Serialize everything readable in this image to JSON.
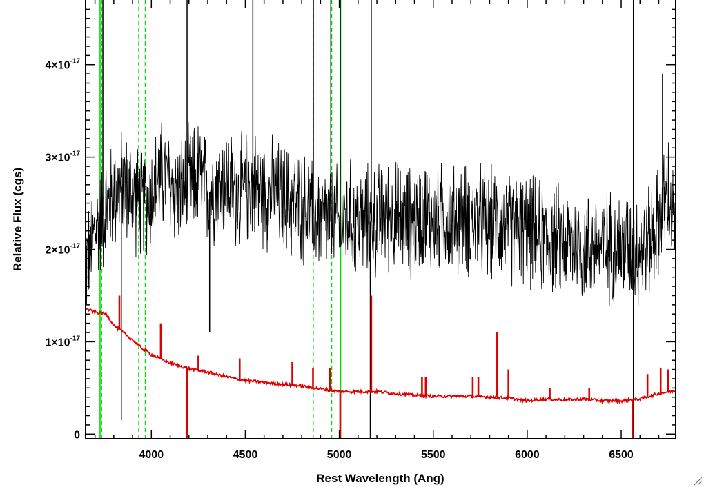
{
  "chart_data": {
    "type": "line",
    "xlabel": "Rest Wavelength (Ang)",
    "ylabel": "Relative Flux (cgs)",
    "xlim": [
      3650,
      6790
    ],
    "ylim": [
      -5e-19,
      4.7e-17
    ],
    "x_ticks": [
      4000,
      4500,
      5000,
      5500,
      6000,
      6500
    ],
    "y_ticks": [
      {
        "value": 0,
        "mantissa": "0",
        "power": ""
      },
      {
        "value": 1e-17,
        "mantissa": "1×10",
        "power": "-17"
      },
      {
        "value": 2e-17,
        "mantissa": "2×10",
        "power": "-17"
      },
      {
        "value": 3e-17,
        "mantissa": "3×10",
        "power": "-17"
      },
      {
        "value": 4e-17,
        "mantissa": "4×10",
        "power": "-17"
      }
    ],
    "grid": false,
    "series": [
      {
        "role": "observed_spectrum",
        "color": "#000000",
        "x": [
          3650,
          3700,
          3750,
          3800,
          3850,
          3900,
          3950,
          4000,
          4050,
          4100,
          4150,
          4200,
          4250,
          4300,
          4350,
          4400,
          4450,
          4500,
          4550,
          4600,
          4650,
          4700,
          4750,
          4800,
          4850,
          4900,
          4950,
          5000,
          5050,
          5100,
          5150,
          5200,
          5250,
          5300,
          5350,
          5400,
          5450,
          5500,
          5550,
          5600,
          5650,
          5700,
          5750,
          5800,
          5850,
          5900,
          5950,
          6000,
          6050,
          6100,
          6150,
          6200,
          6250,
          6300,
          6350,
          6400,
          6450,
          6500,
          6550,
          6600,
          6650,
          6700,
          6750,
          6790
        ],
        "y": [
          1.8e-17,
          2.2e-17,
          2.4e-17,
          2.6e-17,
          2.7e-17,
          2.6e-17,
          2.5e-17,
          2.6e-17,
          2.8e-17,
          2.7e-17,
          2.6e-17,
          2.7e-17,
          2.8e-17,
          2.6e-17,
          2.7e-17,
          2.75e-17,
          2.6e-17,
          2.65e-17,
          2.7e-17,
          2.6e-17,
          2.6e-17,
          2.55e-17,
          2.5e-17,
          2.45e-17,
          2.4e-17,
          2.35e-17,
          2.3e-17,
          2.3e-17,
          2.35e-17,
          2.3e-17,
          2.3e-17,
          2.3e-17,
          2.4e-17,
          2.35e-17,
          2.3e-17,
          2.3e-17,
          2.4e-17,
          2.3e-17,
          2.35e-17,
          2.3e-17,
          2.35e-17,
          2.3e-17,
          2.3e-17,
          2.25e-17,
          2.3e-17,
          2.2e-17,
          2.25e-17,
          2.2e-17,
          2.15e-17,
          2.1e-17,
          2.1e-17,
          2.05e-17,
          2.1e-17,
          2e-17,
          2.05e-17,
          2e-17,
          2.05e-17,
          2e-17,
          2.05e-17,
          2e-17,
          2.1e-17,
          2.3e-17,
          2.6e-17,
          2.2e-17
        ],
        "noise_amplitude": 5.5e-18,
        "spikes": [
          {
            "x": 3742,
            "y": 4.7e-17
          },
          {
            "x": 3840,
            "y": 1.5e-18
          },
          {
            "x": 4190,
            "y": 4.7e-17
          },
          {
            "x": 4310,
            "y": 1.1e-17
          },
          {
            "x": 4540,
            "y": 4.7e-17
          },
          {
            "x": 4862,
            "y": 4.7e-17
          },
          {
            "x": 4955,
            "y": 4.7e-17
          },
          {
            "x": 5005,
            "y": 4.7e-17
          },
          {
            "x": 5170,
            "y": 4.7e-17
          },
          {
            "x": 5165,
            "y": -5e-19
          },
          {
            "x": 6565,
            "y": 4.7e-17
          },
          {
            "x": 6565,
            "y": -5e-19
          },
          {
            "x": 6720,
            "y": 3.9e-17
          }
        ]
      },
      {
        "role": "model_continuum",
        "color": "#dd0000",
        "x": [
          3650,
          3700,
          3760,
          3800,
          3850,
          3900,
          3950,
          4000,
          4100,
          4200,
          4300,
          4400,
          4500,
          4600,
          4700,
          4800,
          4900,
          5000,
          5100,
          5200,
          5300,
          5400,
          5500,
          5600,
          5700,
          5800,
          5900,
          6000,
          6100,
          6200,
          6300,
          6400,
          6500,
          6600,
          6700,
          6790
        ],
        "y": [
          1.36e-17,
          1.32e-17,
          1.3e-17,
          1.18e-17,
          1.1e-17,
          1.02e-17,
          9.3e-18,
          8.6e-18,
          7.7e-18,
          7.1e-18,
          6.7e-18,
          6.2e-18,
          5.8e-18,
          5.6e-18,
          5.4e-18,
          5.2e-18,
          4.9e-18,
          4.6e-18,
          4.6e-18,
          4.6e-18,
          4.4e-18,
          4.2e-18,
          4.1e-18,
          4.1e-18,
          4.1e-18,
          4e-18,
          3.9e-18,
          3.6e-18,
          3.8e-18,
          3.7e-18,
          3.8e-18,
          3.6e-18,
          3.6e-18,
          3.8e-18,
          4.4e-18,
          4.7e-18
        ],
        "lines": [
          {
            "x": 3830,
            "y": 1.5e-17
          },
          {
            "x": 4050,
            "y": 1.2e-17
          },
          {
            "x": 4190,
            "y": -5e-19
          },
          {
            "x": 4250,
            "y": 8.5e-18
          },
          {
            "x": 4470,
            "y": 8.2e-18
          },
          {
            "x": 4750,
            "y": 7.8e-18
          },
          {
            "x": 4860,
            "y": 7.2e-18
          },
          {
            "x": 4950,
            "y": 7.2e-18
          },
          {
            "x": 5005,
            "y": -5e-19
          },
          {
            "x": 5170,
            "y": 1.5e-17
          },
          {
            "x": 5440,
            "y": 6.2e-18
          },
          {
            "x": 5460,
            "y": 6.2e-18
          },
          {
            "x": 5710,
            "y": 6.2e-18
          },
          {
            "x": 5740,
            "y": 6.2e-18
          },
          {
            "x": 5840,
            "y": 1.1e-17
          },
          {
            "x": 5900,
            "y": 7e-18
          },
          {
            "x": 6120,
            "y": 5e-18
          },
          {
            "x": 6330,
            "y": 5e-18
          },
          {
            "x": 6560,
            "y": -5e-19
          },
          {
            "x": 6640,
            "y": 6.5e-18
          },
          {
            "x": 6710,
            "y": 7.2e-18
          },
          {
            "x": 6750,
            "y": 7e-18
          }
        ]
      }
    ],
    "reference_lines": [
      {
        "x": 3727,
        "color": "#00dd00",
        "style": "solid"
      },
      {
        "x": 3735,
        "color": "#00dd00",
        "style": "dashed"
      },
      {
        "x": 3933,
        "color": "#00dd00",
        "style": "dashed"
      },
      {
        "x": 3968,
        "color": "#00dd00",
        "style": "dashed"
      },
      {
        "x": 4861,
        "color": "#00dd00",
        "style": "dashed"
      },
      {
        "x": 4959,
        "color": "#00dd00",
        "style": "dashed"
      },
      {
        "x": 5007,
        "color": "#00dd00",
        "style": "solid"
      }
    ]
  }
}
